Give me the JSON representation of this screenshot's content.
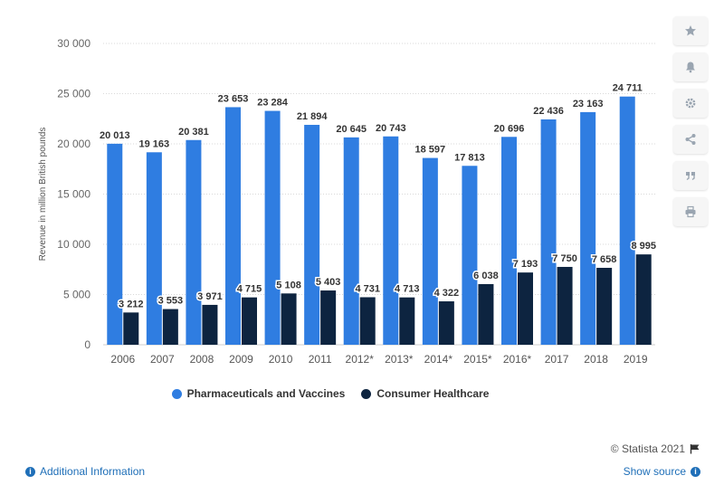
{
  "chart_data": {
    "type": "bar",
    "ylabel": "Revenue in million British pounds",
    "ylim": [
      0,
      30000
    ],
    "yticks": [
      0,
      5000,
      10000,
      15000,
      20000,
      25000,
      30000
    ],
    "ytick_labels": [
      "0",
      "5 000",
      "10 000",
      "15 000",
      "20 000",
      "25 000",
      "30 000"
    ],
    "categories": [
      "2006",
      "2007",
      "2008",
      "2009",
      "2010",
      "2011",
      "2012*",
      "2013*",
      "2014*",
      "2015*",
      "2016*",
      "2017",
      "2018",
      "2019"
    ],
    "series": [
      {
        "name": "Pharmaceuticals and Vaccines",
        "color": "#2f7de1",
        "values": [
          20013,
          19163,
          20381,
          23653,
          23284,
          21894,
          20645,
          20743,
          18597,
          17813,
          20696,
          22436,
          23163,
          24711
        ],
        "labels": [
          "20 013",
          "19 163",
          "20 381",
          "23 653",
          "23 284",
          "21 894",
          "20 645",
          "20 743",
          "18 597",
          "17 813",
          "20 696",
          "22 436",
          "23 163",
          "24 711"
        ]
      },
      {
        "name": "Consumer Healthcare",
        "color": "#0d2440",
        "values": [
          3212,
          3553,
          3971,
          4715,
          5108,
          5403,
          4731,
          4713,
          4322,
          6038,
          7193,
          7750,
          7658,
          8995
        ],
        "labels": [
          "3 212",
          "3 553",
          "3 971",
          "4 715",
          "5 108",
          "5 403",
          "4 731",
          "4 713",
          "4 322",
          "6 038",
          "7 193",
          "7 750",
          "7 658",
          "8 995"
        ]
      }
    ],
    "grid": true,
    "legend_position": "bottom"
  },
  "toolbar": {
    "buttons": [
      "star-icon",
      "bell-icon",
      "gear-icon",
      "share-icon",
      "quote-icon",
      "print-icon"
    ]
  },
  "footer": {
    "credits": "© Statista 2021",
    "additional_info": "Additional Information",
    "show_source": "Show source"
  }
}
